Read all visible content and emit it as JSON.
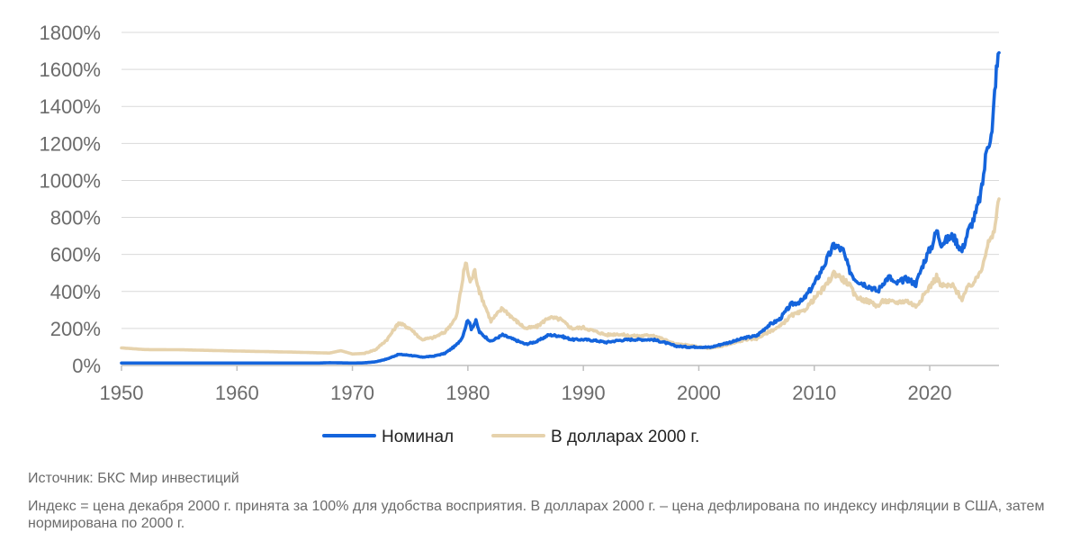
{
  "chart_data": {
    "type": "line",
    "title": "",
    "xlabel": "",
    "ylabel": "",
    "xlim": [
      1950,
      2026
    ],
    "ylim": [
      0,
      1800
    ],
    "x_ticks": [
      1950,
      1960,
      1970,
      1980,
      1990,
      2000,
      2010,
      2020
    ],
    "y_ticks": [
      0,
      200,
      400,
      600,
      800,
      1000,
      1200,
      1400,
      1600,
      1800
    ],
    "y_tick_suffix": "%",
    "grid": "horizontal",
    "legend_position": "bottom",
    "series": [
      {
        "name": "Номинал",
        "color": "#1464dc",
        "points": [
          [
            1950,
            13
          ],
          [
            1960,
            13
          ],
          [
            1967,
            13
          ],
          [
            1968,
            15
          ],
          [
            1970,
            13
          ],
          [
            1971,
            14
          ],
          [
            1972,
            20
          ],
          [
            1973,
            35
          ],
          [
            1974,
            60
          ],
          [
            1975,
            55
          ],
          [
            1976,
            45
          ],
          [
            1977,
            50
          ],
          [
            1978,
            65
          ],
          [
            1979,
            110
          ],
          [
            1979.5,
            150
          ],
          [
            1980,
            250
          ],
          [
            1980.3,
            200
          ],
          [
            1980.7,
            240
          ],
          [
            1981,
            180
          ],
          [
            1982,
            130
          ],
          [
            1983,
            165
          ],
          [
            1984,
            140
          ],
          [
            1985,
            115
          ],
          [
            1986,
            130
          ],
          [
            1987,
            165
          ],
          [
            1988,
            160
          ],
          [
            1989,
            140
          ],
          [
            1990,
            140
          ],
          [
            1991,
            135
          ],
          [
            1992,
            125
          ],
          [
            1993,
            135
          ],
          [
            1994,
            140
          ],
          [
            1995,
            140
          ],
          [
            1996,
            140
          ],
          [
            1997,
            125
          ],
          [
            1998,
            105
          ],
          [
            1999,
            100
          ],
          [
            2000,
            100
          ],
          [
            2001,
            98
          ],
          [
            2002,
            115
          ],
          [
            2003,
            130
          ],
          [
            2004,
            150
          ],
          [
            2005,
            160
          ],
          [
            2006,
            215
          ],
          [
            2007,
            250
          ],
          [
            2008,
            330
          ],
          [
            2009,
            350
          ],
          [
            2010,
            440
          ],
          [
            2011,
            560
          ],
          [
            2011.7,
            650
          ],
          [
            2012,
            640
          ],
          [
            2012.5,
            620
          ],
          [
            2013,
            520
          ],
          [
            2013.5,
            470
          ],
          [
            2014,
            450
          ],
          [
            2015,
            420
          ],
          [
            2015.5,
            400
          ],
          [
            2016,
            450
          ],
          [
            2016.5,
            480
          ],
          [
            2017,
            440
          ],
          [
            2018,
            470
          ],
          [
            2018.8,
            440
          ],
          [
            2019.5,
            560
          ],
          [
            2020.2,
            650
          ],
          [
            2020.6,
            730
          ],
          [
            2021,
            660
          ],
          [
            2022,
            700
          ],
          [
            2022.8,
            620
          ],
          [
            2023.3,
            720
          ],
          [
            2024,
            820
          ],
          [
            2024.5,
            950
          ],
          [
            2025,
            1200
          ],
          [
            2025.4,
            1250
          ],
          [
            2025.7,
            1550
          ],
          [
            2026,
            1690
          ]
        ]
      },
      {
        "name": "В долларах 2000 г.",
        "color": "#e6d2ac",
        "points": [
          [
            1950,
            95
          ],
          [
            1952,
            86
          ],
          [
            1955,
            85
          ],
          [
            1960,
            78
          ],
          [
            1965,
            72
          ],
          [
            1968,
            67
          ],
          [
            1969,
            80
          ],
          [
            1970,
            62
          ],
          [
            1971,
            65
          ],
          [
            1972,
            85
          ],
          [
            1973,
            140
          ],
          [
            1974,
            230
          ],
          [
            1975,
            200
          ],
          [
            1976,
            140
          ],
          [
            1977,
            150
          ],
          [
            1978,
            180
          ],
          [
            1979,
            260
          ],
          [
            1979.8,
            560
          ],
          [
            1980.2,
            450
          ],
          [
            1980.6,
            510
          ],
          [
            1981,
            400
          ],
          [
            1982,
            240
          ],
          [
            1983,
            310
          ],
          [
            1984,
            250
          ],
          [
            1985,
            200
          ],
          [
            1986,
            210
          ],
          [
            1987,
            260
          ],
          [
            1988,
            250
          ],
          [
            1989,
            200
          ],
          [
            1990,
            205
          ],
          [
            1991,
            185
          ],
          [
            1992,
            165
          ],
          [
            1993,
            170
          ],
          [
            1994,
            160
          ],
          [
            1995,
            160
          ],
          [
            1996,
            165
          ],
          [
            1997,
            140
          ],
          [
            1998,
            115
          ],
          [
            1999,
            110
          ],
          [
            2000,
            100
          ],
          [
            2001,
            92
          ],
          [
            2002,
            105
          ],
          [
            2003,
            120
          ],
          [
            2004,
            140
          ],
          [
            2005,
            145
          ],
          [
            2006,
            180
          ],
          [
            2007,
            210
          ],
          [
            2008,
            270
          ],
          [
            2009,
            290
          ],
          [
            2010,
            360
          ],
          [
            2011,
            430
          ],
          [
            2011.7,
            500
          ],
          [
            2012,
            490
          ],
          [
            2013,
            440
          ],
          [
            2013.5,
            380
          ],
          [
            2014,
            360
          ],
          [
            2015,
            340
          ],
          [
            2015.5,
            320
          ],
          [
            2016,
            350
          ],
          [
            2017,
            340
          ],
          [
            2018,
            350
          ],
          [
            2018.8,
            320
          ],
          [
            2019.5,
            380
          ],
          [
            2020.6,
            480
          ],
          [
            2021,
            430
          ],
          [
            2022,
            430
          ],
          [
            2022.8,
            360
          ],
          [
            2023.3,
            420
          ],
          [
            2024,
            460
          ],
          [
            2024.5,
            530
          ],
          [
            2025,
            650
          ],
          [
            2025.5,
            700
          ],
          [
            2026,
            900
          ]
        ]
      }
    ]
  },
  "notes": {
    "source": "Источник: БКС Мир инвестиций",
    "description": "Индекс = цена декабря 2000 г. принята за 100% для удобства восприятия. В долларах 2000 г. – цена дефлирована по индексу инфляции в США, затем нормирована по 2000 г."
  }
}
